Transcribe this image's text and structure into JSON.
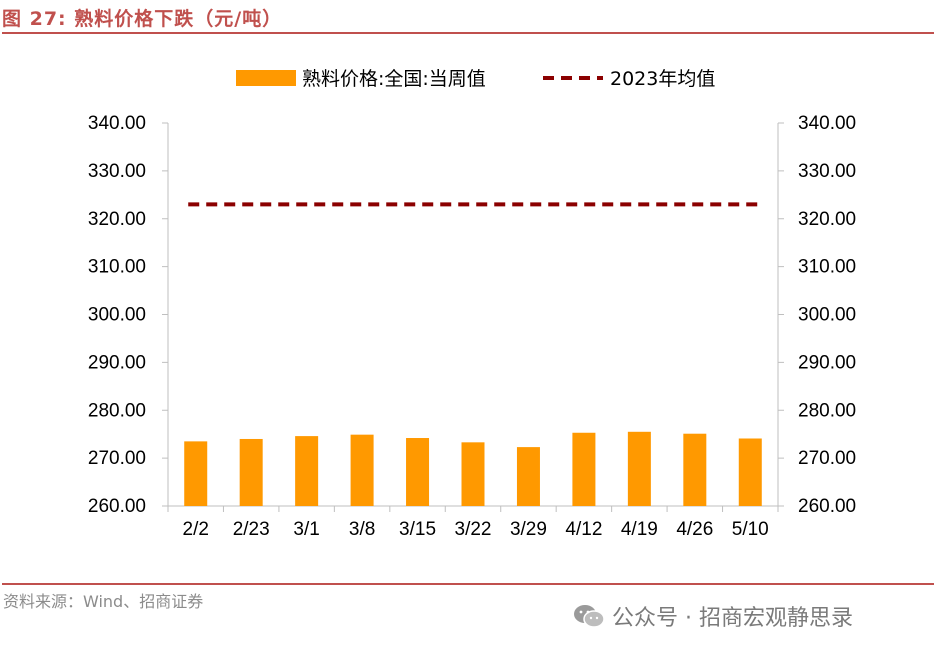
{
  "figure_title": "图 27: 熟料价格下跌（元/吨）",
  "source_note": "资料来源：Wind、招商证券",
  "watermark": "公众号 · 招商宏观静思录",
  "chart_data": {
    "type": "bar",
    "categories": [
      "2/2",
      "2/23",
      "3/1",
      "3/8",
      "3/15",
      "3/22",
      "3/29",
      "4/12",
      "4/19",
      "4/26",
      "5/10"
    ],
    "series": [
      {
        "name": "熟料价格:全国:当周值",
        "type": "bar",
        "color": "#ff9900",
        "values": [
          273.5,
          274.0,
          274.6,
          274.9,
          274.2,
          273.3,
          272.3,
          275.3,
          275.5,
          275.1,
          274.1
        ]
      },
      {
        "name": "2023年均值",
        "type": "line",
        "style": "dashed",
        "color": "#8b0000",
        "values": [
          323.0,
          323.0,
          323.0,
          323.0,
          323.0,
          323.0,
          323.0,
          323.0,
          323.0,
          323.0,
          323.0
        ]
      }
    ],
    "yticks": [
      "260.00",
      "270.00",
      "280.00",
      "290.00",
      "300.00",
      "310.00",
      "320.00",
      "330.00",
      "340.00"
    ],
    "ylim": [
      260,
      340
    ],
    "legend_position": "top",
    "grid": false
  }
}
